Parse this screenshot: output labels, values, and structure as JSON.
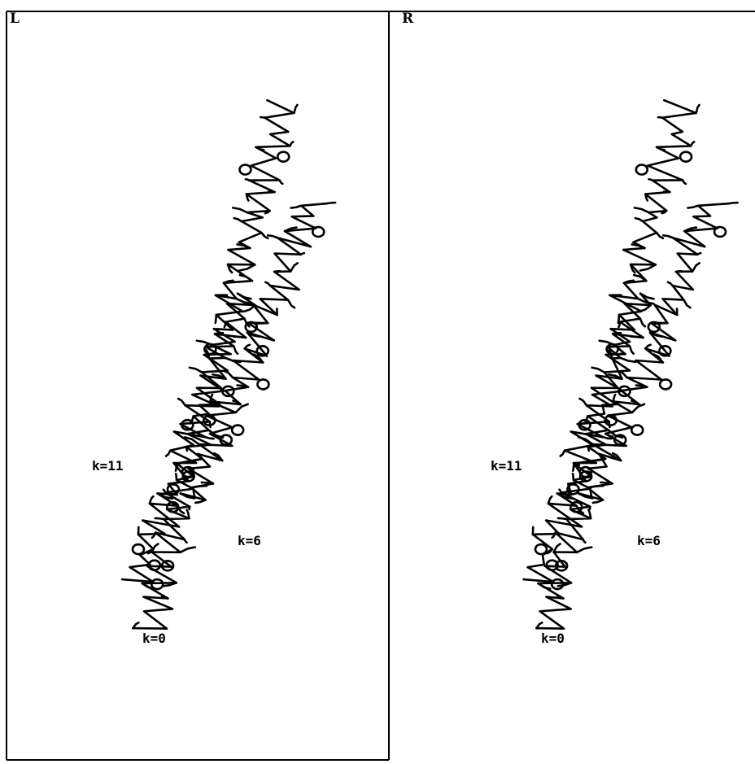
{
  "panels": [
    {
      "label": "L",
      "annotations": [
        "k=11",
        "k=6",
        "k=0"
      ]
    },
    {
      "label": "R",
      "annotations": [
        "k=11",
        "k=6",
        "k=0"
      ]
    }
  ]
}
